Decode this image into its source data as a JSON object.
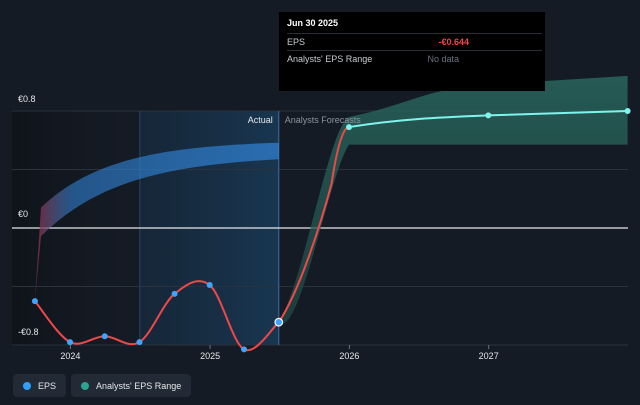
{
  "tooltip": {
    "date": "Jun 30 2025",
    "rows": [
      {
        "label": "EPS",
        "value": "-€0.644"
      },
      {
        "label": "Analysts' EPS Range",
        "value": "No data"
      }
    ]
  },
  "legend": {
    "items": [
      {
        "label": "EPS",
        "color": "#2f9fff"
      },
      {
        "label": "Analysts' EPS Range",
        "color": "#2aa392"
      }
    ]
  },
  "colors": {
    "background": "#151b24",
    "eps_line": "#ef4848",
    "forecast_line": "#7ff3ec",
    "forecast_band": "#2a6a60",
    "actual_band": "#2f7fd0",
    "point": "#3ea4ff"
  },
  "chart_data": {
    "type": "line",
    "ylim": [
      -0.8,
      0.8
    ],
    "y_ticks": [
      {
        "value": 0.8,
        "label": "€0.8"
      },
      {
        "value": 0,
        "label": "€0"
      },
      {
        "value": -0.8,
        "label": "-€0.8"
      }
    ],
    "x_ticks": [
      {
        "value": "2024-01-01",
        "label": "2024"
      },
      {
        "value": "2025-01-01",
        "label": "2025"
      },
      {
        "value": "2026-01-01",
        "label": "2026"
      },
      {
        "value": "2027-01-01",
        "label": "2027"
      }
    ],
    "xlim": [
      "2023-08-01",
      "2028-01-01"
    ],
    "divider_date": "2025-06-30",
    "highlight_start": "2024-07-01",
    "section_labels": {
      "actual": "Actual",
      "forecast": "Analysts Forecasts"
    },
    "series": [
      {
        "name": "EPS",
        "x": [
          "2023-09-30",
          "2023-12-31",
          "2024-03-31",
          "2024-06-30",
          "2024-09-30",
          "2024-12-31",
          "2025-03-31",
          "2025-06-30"
        ],
        "values": [
          -0.5,
          -0.78,
          -0.74,
          -0.78,
          -0.45,
          -0.39,
          -0.83,
          -0.644
        ]
      },
      {
        "name": "Analysts' EPS Range",
        "x": [
          "2025-12-31",
          "2026-12-31",
          "2027-12-31"
        ],
        "values": [
          0.69,
          0.77,
          0.8
        ],
        "low": [
          0.57,
          0.57,
          0.57
        ],
        "high": [
          0.76,
          0.98,
          1.04
        ]
      }
    ]
  }
}
